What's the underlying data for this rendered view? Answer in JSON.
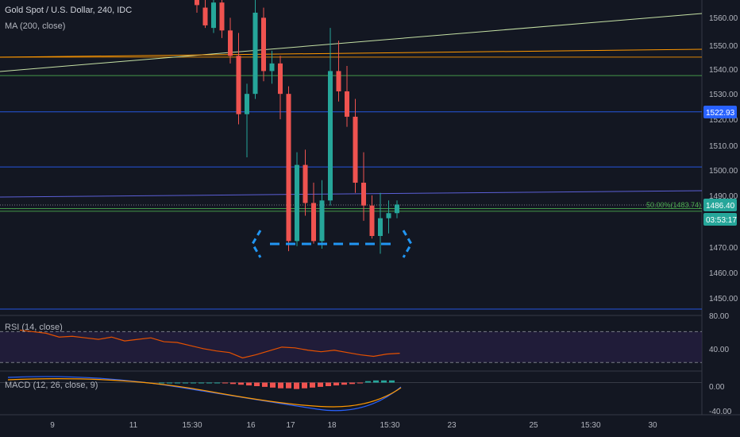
{
  "header": {
    "title": "Gold Spot / U.S. Dollar, 240, IDC",
    "ma_label": "MA (200, close)"
  },
  "panes": {
    "rsi_label": "RSI (14, close)",
    "macd_label": "MACD (12, 26, close, 9)"
  },
  "price_axis": {
    "ticks": [
      "1560.00",
      "1550.00",
      "1540.00",
      "1530.00",
      "1520.00",
      "1510.00",
      "1500.00",
      "1490.00",
      "1470.00",
      "1460.00",
      "1450.00"
    ],
    "price_badge": "1486.40",
    "timer_badge": "03:53:17",
    "level_badge": "1522.93"
  },
  "rsi_axis": {
    "ticks": [
      "80.00",
      "40.00"
    ]
  },
  "macd_axis": {
    "ticks": [
      "0.00",
      "-40.00"
    ]
  },
  "time_axis": {
    "ticks": [
      "9",
      "11",
      "15:30",
      "16",
      "17",
      "18",
      "15:30",
      "23",
      "25",
      "15:30",
      "30"
    ]
  },
  "fib_label": "50.00%(1483.74)",
  "colors": {
    "background": "#131722",
    "bull": "#26a69a",
    "bear": "#ef5350",
    "hline_blue": "#2962ff",
    "hline_green": "#4caf50",
    "ma_line": "#ff9800",
    "trend_line": "#c5e1a5",
    "rsi_line": "#e65100",
    "rsi_band": "#2a1f4a",
    "pattern": "#2196f3",
    "badge_blue": "#2962ff",
    "badge_teal": "#26a69a"
  },
  "chart_data": [
    {
      "type": "candlestick",
      "name": "price",
      "y_range": [
        1443,
        1567
      ],
      "horizontal_levels": [
        1544.5,
        1537.2,
        1522.93,
        1501.2,
        1484.8,
        1483.74,
        1445.2
      ],
      "candles": [
        {
          "t": "5",
          "o": 1568,
          "h": 1570,
          "l": 1562,
          "c": 1565
        },
        {
          "t": "6",
          "o": 1564,
          "h": 1568,
          "l": 1556,
          "c": 1557
        },
        {
          "t": "7",
          "o": 1556,
          "h": 1568,
          "l": 1554,
          "c": 1566
        },
        {
          "t": "8",
          "o": 1566,
          "h": 1570,
          "l": 1552,
          "c": 1555
        },
        {
          "t": "9",
          "o": 1555,
          "h": 1560,
          "l": 1542,
          "c": 1545
        },
        {
          "t": "10",
          "o": 1545,
          "h": 1554,
          "l": 1518,
          "c": 1522
        },
        {
          "t": "11",
          "o": 1522,
          "h": 1534,
          "l": 1505,
          "c": 1530
        },
        {
          "t": "12",
          "o": 1530,
          "h": 1568,
          "l": 1528,
          "c": 1562
        },
        {
          "t": "13",
          "o": 1560,
          "h": 1564,
          "l": 1535,
          "c": 1539
        },
        {
          "t": "14",
          "o": 1539,
          "h": 1547,
          "l": 1534,
          "c": 1542
        },
        {
          "t": "15",
          "o": 1542,
          "h": 1545,
          "l": 1520,
          "c": 1530
        },
        {
          "t": "16",
          "o": 1530,
          "h": 1533,
          "l": 1468,
          "c": 1472
        },
        {
          "t": "17",
          "o": 1472,
          "h": 1507,
          "l": 1470,
          "c": 1502
        },
        {
          "t": "18",
          "o": 1502,
          "h": 1508,
          "l": 1482,
          "c": 1487
        },
        {
          "t": "19",
          "o": 1487,
          "h": 1495,
          "l": 1471,
          "c": 1472
        },
        {
          "t": "20",
          "o": 1472,
          "h": 1496,
          "l": 1469,
          "c": 1488
        },
        {
          "t": "21",
          "o": 1488,
          "h": 1556,
          "l": 1486,
          "c": 1539
        },
        {
          "t": "22",
          "o": 1539,
          "h": 1551,
          "l": 1527,
          "c": 1531
        },
        {
          "t": "23",
          "o": 1531,
          "h": 1541,
          "l": 1517,
          "c": 1521
        },
        {
          "t": "24",
          "o": 1521,
          "h": 1528,
          "l": 1491,
          "c": 1495
        },
        {
          "t": "25",
          "o": 1495,
          "h": 1507,
          "l": 1480,
          "c": 1486
        },
        {
          "t": "26",
          "o": 1486,
          "h": 1490,
          "l": 1473,
          "c": 1474
        },
        {
          "t": "27",
          "o": 1474,
          "h": 1491,
          "l": 1467,
          "c": 1481
        },
        {
          "t": "28",
          "o": 1481,
          "h": 1488,
          "l": 1475,
          "c": 1483
        },
        {
          "t": "29",
          "o": 1483,
          "h": 1488,
          "l": 1481,
          "c": 1486.4
        }
      ]
    },
    {
      "type": "line",
      "name": "RSI",
      "y_range": [
        20,
        90
      ],
      "bands": [
        70,
        30
      ],
      "x": [
        0,
        1,
        2,
        3,
        4,
        5,
        6,
        7,
        8,
        9,
        10,
        11,
        12,
        13,
        14,
        15,
        16,
        17,
        18,
        19,
        20,
        21,
        22,
        23,
        24,
        25,
        26,
        27,
        28,
        29
      ],
      "values": [
        72,
        70,
        68,
        63,
        64,
        62,
        60,
        63,
        58,
        60,
        62,
        57,
        56,
        52,
        48,
        45,
        43,
        36,
        40,
        45,
        50,
        49,
        46,
        44,
        46,
        43,
        40,
        38,
        41,
        42
      ]
    },
    {
      "type": "bar",
      "name": "MACD histogram",
      "y_range": [
        -45,
        15
      ],
      "values": [
        0,
        0,
        0,
        0,
        0,
        0,
        0,
        0,
        -1,
        -2,
        -3,
        -4,
        -5,
        -6,
        -7,
        -8,
        -8,
        -9,
        -8,
        -7,
        -6,
        -5,
        -4,
        -3,
        -2,
        -1,
        2,
        3,
        3,
        3
      ]
    }
  ]
}
